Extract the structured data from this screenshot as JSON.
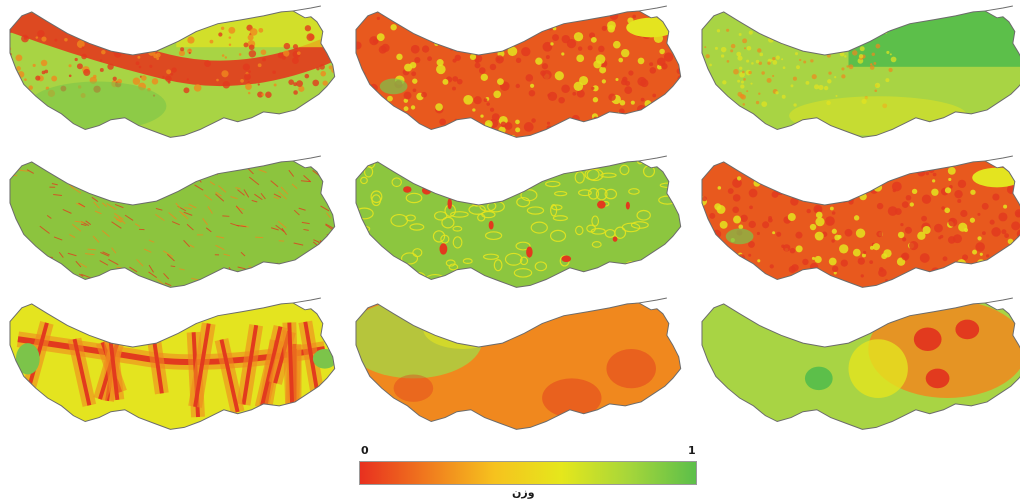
{
  "figure": {
    "maps": [
      {
        "name": "map-row1-col1",
        "pattern": "ridge-band"
      },
      {
        "name": "map-row1-col2",
        "pattern": "dense-hot"
      },
      {
        "name": "map-row1-col3",
        "pattern": "mostly-green"
      },
      {
        "name": "map-row2-col1",
        "pattern": "hatched-green"
      },
      {
        "name": "map-row2-col2",
        "pattern": "green-patches"
      },
      {
        "name": "map-row2-col3",
        "pattern": "dense-hot"
      },
      {
        "name": "map-row3-col1",
        "pattern": "stream-network"
      },
      {
        "name": "map-row3-col2",
        "pattern": "smooth-warm"
      },
      {
        "name": "map-row3-col3",
        "pattern": "smooth-green-east-hot"
      }
    ]
  },
  "legend": {
    "min_label": "0",
    "max_label": "1",
    "title": "وزن",
    "colors": [
      "#e8301f",
      "#f07a1e",
      "#f6c21e",
      "#e5e71c",
      "#a6d63a",
      "#5cbf4a"
    ]
  }
}
